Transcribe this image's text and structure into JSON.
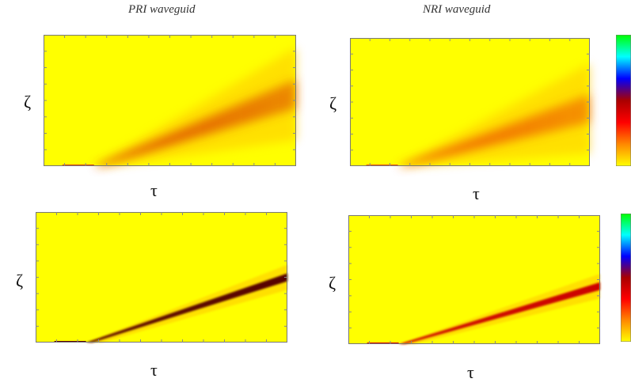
{
  "titles": {
    "left": "PRI waveguid",
    "right": "NRI waveguid"
  },
  "axis_labels": {
    "x": "τ",
    "y": "ζ"
  },
  "colormap": [
    "#ffff00",
    "#ff8800",
    "#ff0000",
    "#aa0000",
    "#0000ff",
    "#00ffff",
    "#00ff00"
  ],
  "chart_data": [
    {
      "type": "heatmap",
      "title": "PRI waveguid",
      "xlabel": "τ",
      "ylabel": "ζ",
      "row": 1,
      "column": 1,
      "background": "#ffff00",
      "beam": {
        "origin": [
          0.2,
          0.0
        ],
        "center_end": [
          1.0,
          0.55
        ],
        "spread": "wide",
        "peak_color": "#dd4400"
      }
    },
    {
      "type": "heatmap",
      "title": "NRI waveguid",
      "xlabel": "τ",
      "ylabel": "ζ",
      "row": 1,
      "column": 2,
      "background": "#ffff00",
      "beam": {
        "origin": [
          0.2,
          0.0
        ],
        "center_end": [
          1.0,
          0.45
        ],
        "spread": "wide",
        "peak_color": "#ee5500"
      }
    },
    {
      "type": "heatmap",
      "title": "",
      "xlabel": "τ",
      "ylabel": "ζ",
      "row": 2,
      "column": 1,
      "background": "#ffff00",
      "beam": {
        "origin": [
          0.2,
          0.0
        ],
        "center_end": [
          1.0,
          0.5
        ],
        "spread": "narrow",
        "peak_color": "#550000"
      }
    },
    {
      "type": "heatmap",
      "title": "",
      "xlabel": "τ",
      "ylabel": "ζ",
      "row": 2,
      "column": 2,
      "background": "#ffff00",
      "beam": {
        "origin": [
          0.2,
          0.0
        ],
        "center_end": [
          1.0,
          0.45
        ],
        "spread": "narrow",
        "peak_color": "#cc0000"
      }
    }
  ]
}
